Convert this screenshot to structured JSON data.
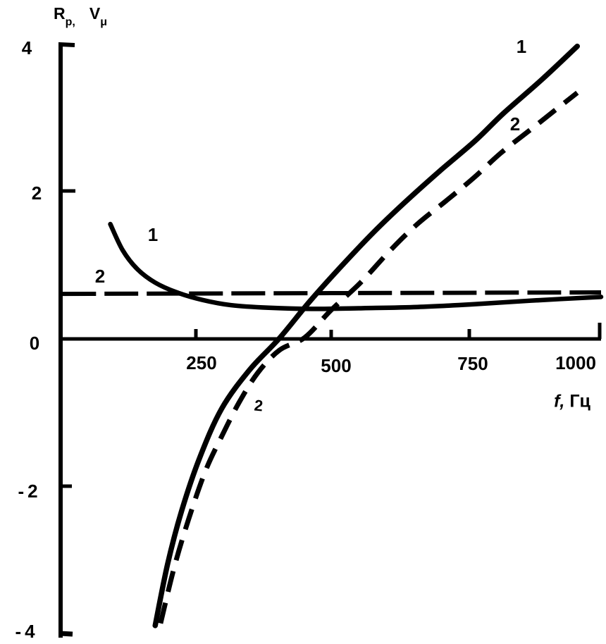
{
  "figure": {
    "background": "#ffffff",
    "ink_color": "#000000",
    "y_axis_symbol": {
      "r": "R",
      "r_sub": "p,",
      "v": "V",
      "v_sub": "μ"
    },
    "x_axis_title": {
      "symbol": "f,",
      "unit": "Гц"
    },
    "y_tick_labels": [
      "4",
      "2",
      "0",
      "-2",
      "-4"
    ],
    "x_tick_labels": [
      "250",
      "500",
      "750",
      "1000"
    ],
    "curve_labels": {
      "flat_solid": "1",
      "horizontal_dashed": "2",
      "steep_solid": "1",
      "steep_dashed": "2",
      "steep_dashed_mid": "2"
    }
  },
  "chart_data": {
    "type": "line",
    "title": "",
    "xlabel": "f, Гц",
    "ylabel": "Rp, Vμ",
    "xlim": [
      0,
      1050
    ],
    "ylim": [
      -4.2,
      4
    ],
    "x_ticks": [
      250,
      500,
      750,
      1000
    ],
    "y_ticks": [
      -4,
      -2,
      0,
      2,
      4
    ],
    "grid": false,
    "legend_position": "labels 1 and 2 written directly on curves",
    "series": [
      {
        "name": "1 - slowly varying curve (solid)",
        "line": "solid",
        "points": [
          [
            92,
            1.53
          ],
          [
            115,
            1.18
          ],
          [
            142,
            0.93
          ],
          [
            175,
            0.75
          ],
          [
            215,
            0.62
          ],
          [
            262,
            0.52
          ],
          [
            315,
            0.45
          ],
          [
            385,
            0.415
          ],
          [
            465,
            0.4
          ],
          [
            560,
            0.41
          ],
          [
            660,
            0.425
          ],
          [
            760,
            0.46
          ],
          [
            870,
            0.51
          ],
          [
            1000,
            0.56
          ]
        ]
      },
      {
        "name": "2 - nearly constant curve (long dash)",
        "line": "dashed",
        "points": [
          [
            3,
            0.6
          ],
          [
            500,
            0.61
          ],
          [
            1000,
            0.62
          ]
        ]
      },
      {
        "name": "1 - steep rising curve (solid)",
        "line": "solid",
        "points": [
          [
            175,
            -3.82
          ],
          [
            198,
            -3.0
          ],
          [
            224,
            -2.29
          ],
          [
            257,
            -1.59
          ],
          [
            298,
            -0.93
          ],
          [
            350,
            -0.41
          ],
          [
            405,
            0.01
          ],
          [
            461,
            0.5
          ],
          [
            517,
            0.95
          ],
          [
            579,
            1.42
          ],
          [
            637,
            1.82
          ],
          [
            702,
            2.24
          ],
          [
            767,
            2.64
          ],
          [
            820,
            3.01
          ],
          [
            891,
            3.46
          ],
          [
            956,
            3.9
          ]
        ]
      },
      {
        "name": "2 - steep rising curve (dashed)",
        "line": "dashed",
        "points": [
          [
            185,
            -3.79
          ],
          [
            210,
            -3.05
          ],
          [
            237,
            -2.4
          ],
          [
            268,
            -1.76
          ],
          [
            298,
            -1.3
          ],
          [
            330,
            -0.85
          ],
          [
            365,
            -0.45
          ],
          [
            405,
            -0.15
          ],
          [
            452,
            0.02
          ],
          [
            500,
            0.38
          ],
          [
            555,
            0.75
          ],
          [
            610,
            1.18
          ],
          [
            660,
            1.53
          ],
          [
            715,
            1.85
          ],
          [
            765,
            2.15
          ],
          [
            815,
            2.48
          ],
          [
            875,
            2.82
          ],
          [
            917,
            3.06
          ],
          [
            956,
            3.28
          ]
        ]
      }
    ]
  }
}
